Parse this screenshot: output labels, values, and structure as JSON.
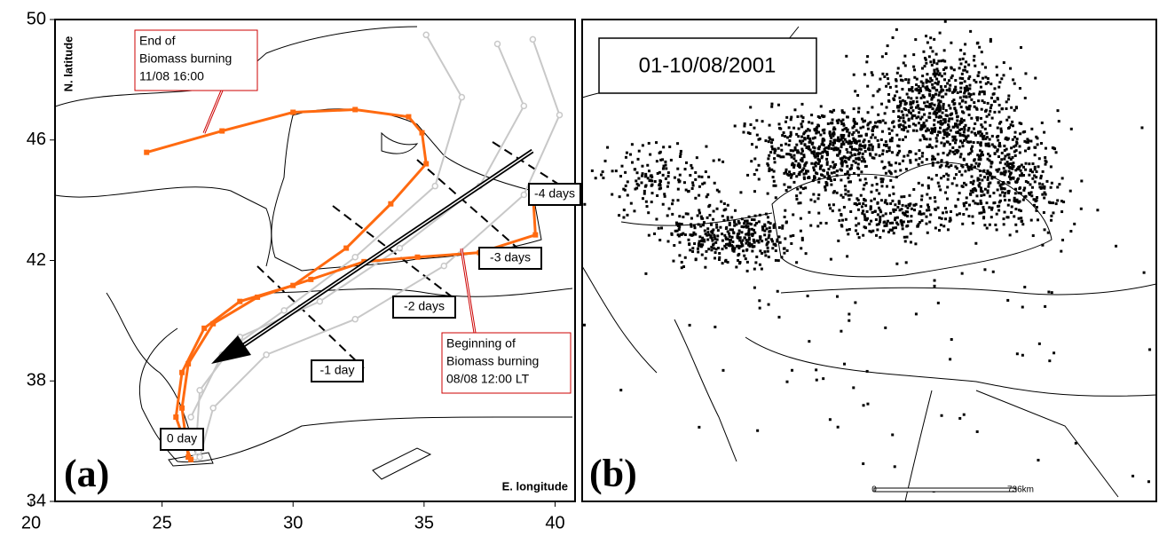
{
  "chart_data": {
    "type": "line",
    "xlabel": "E. longitude",
    "ylabel": "N. latitude",
    "panel_label": "(a)",
    "xlim": [
      20,
      41
    ],
    "xticks": [
      20,
      25,
      30,
      35,
      40
    ],
    "ylim": [
      34,
      50
    ],
    "yticks": [
      34,
      38,
      42,
      46,
      50
    ],
    "series": [
      {
        "color": "#c8c8c8",
        "x": [
          37.8,
          38.81,
          37.12,
          34.07,
          31.02,
          27.97,
          26.44,
          26.27
        ],
        "y": [
          49.19,
          47.13,
          44.47,
          42.41,
          40.64,
          39.46,
          37.69,
          35.47
        ]
      },
      {
        "color": "#c8c8c8",
        "x": [
          39.15,
          40.17,
          38.81,
          35.76,
          32.37,
          28.98,
          26.95,
          26.44
        ],
        "y": [
          49.34,
          46.83,
          44.18,
          41.82,
          40.05,
          38.87,
          37.1,
          35.47
        ]
      },
      {
        "color": "#c8c8c8",
        "x": [
          35.08,
          36.44,
          35.42,
          32.37,
          29.66,
          27.29,
          26.1
        ],
        "y": [
          49.49,
          47.42,
          44.47,
          42.11,
          40.34,
          38.87,
          36.8
        ]
      },
      {
        "color": "#ff6a10",
        "x": [
          24.41,
          27.29,
          30.0,
          32.37,
          34.41,
          34.92,
          35.08,
          33.73,
          32.03,
          30.0,
          27.97,
          26.61,
          25.76,
          25.53,
          26.1
        ],
        "y": [
          45.59,
          46.3,
          46.92,
          47.01,
          46.77,
          46.24,
          45.21,
          43.88,
          42.41,
          41.17,
          40.64,
          39.75,
          38.28,
          36.8,
          35.39
        ]
      },
      {
        "color": "#ff6a10",
        "x": [
          39.15,
          39.25,
          37.12,
          34.75,
          32.71,
          30.68,
          28.64,
          26.95,
          26.0,
          25.76,
          26.0
        ],
        "y": [
          44.32,
          42.85,
          42.26,
          42.11,
          41.96,
          41.37,
          40.78,
          39.9,
          38.57,
          37.1,
          35.47
        ]
      }
    ],
    "annotations": [
      {
        "lines": [
          "End of",
          "Biomass burning",
          "11/08 16:00"
        ]
      },
      {
        "lines": [
          "Beginning of",
          "Biomass burning",
          "08/08 12:00 LT"
        ]
      }
    ],
    "day_labels": [
      "-4 days",
      "-3 days",
      "-2 days",
      "-1 day",
      "0 day"
    ]
  },
  "panel_b": {
    "panel_label": "(b)",
    "period": "01-10/08/2001",
    "scale_start": "0",
    "scale_end": "736km"
  }
}
